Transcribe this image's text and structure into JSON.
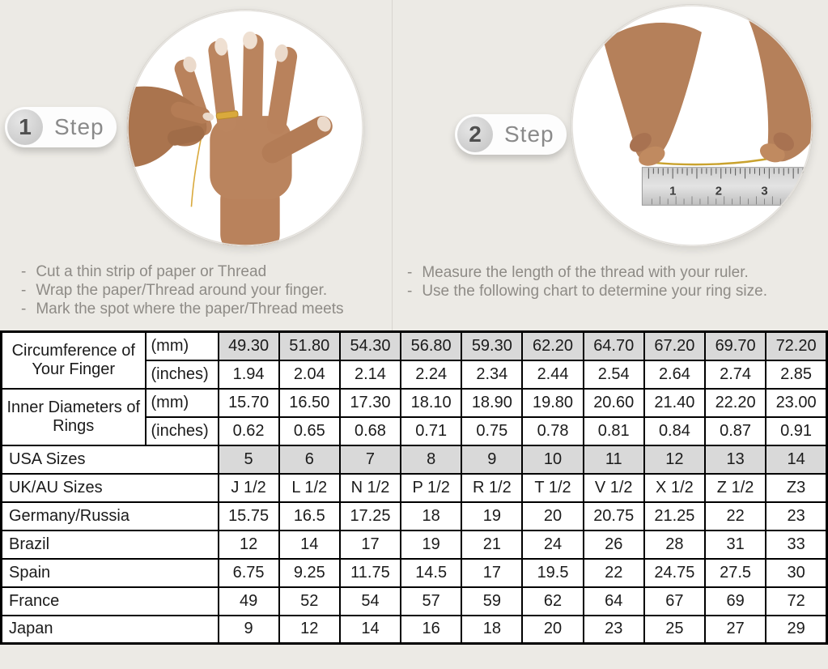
{
  "colors": {
    "background": "#ECEAE5",
    "divider": "#D8D5CF",
    "badge_background": "#FDFDFD",
    "badge_number_text": "#4F4F4F",
    "step_word_text": "#8A8A8A",
    "instruction_text": "#8E8B86",
    "table_border": "#000000",
    "table_shaded_cell": "#D9D9D9",
    "thread_gold": "#C9A22E"
  },
  "steps": [
    {
      "number": "1",
      "label": "Step",
      "photo": "hand-with-thread-around-finger",
      "instructions": [
        "Cut a thin strip of paper or Thread",
        "Wrap the paper/Thread around your finger.",
        "Mark the spot where the paper/Thread meets"
      ]
    },
    {
      "number": "2",
      "label": "Step",
      "photo": "hands-measuring-thread-with-ruler",
      "instructions": [
        "Measure the length of the thread with your ruler.",
        "Use the following chart to determine your ring size."
      ]
    }
  ],
  "ruler_numbers": [
    "1",
    "2",
    "3"
  ],
  "size_chart": {
    "grouped_rows": [
      {
        "label": "Circumference of Your Finger",
        "subrows": [
          {
            "unit": "(mm)",
            "shaded": true,
            "values": [
              "49.30",
              "51.80",
              "54.30",
              "56.80",
              "59.30",
              "62.20",
              "64.70",
              "67.20",
              "69.70",
              "72.20"
            ]
          },
          {
            "unit": "(inches)",
            "shaded": false,
            "values": [
              "1.94",
              "2.04",
              "2.14",
              "2.24",
              "2.34",
              "2.44",
              "2.54",
              "2.64",
              "2.74",
              "2.85"
            ]
          }
        ]
      },
      {
        "label": "Inner Diameters of Rings",
        "subrows": [
          {
            "unit": "(mm)",
            "shaded": false,
            "values": [
              "15.70",
              "16.50",
              "17.30",
              "18.10",
              "18.90",
              "19.80",
              "20.60",
              "21.40",
              "22.20",
              "23.00"
            ]
          },
          {
            "unit": "(inches)",
            "shaded": false,
            "values": [
              "0.62",
              "0.65",
              "0.68",
              "0.71",
              "0.75",
              "0.78",
              "0.81",
              "0.84",
              "0.87",
              "0.91"
            ]
          }
        ]
      }
    ],
    "rows": [
      {
        "label": "USA Sizes",
        "shaded": true,
        "values": [
          "5",
          "6",
          "7",
          "8",
          "9",
          "10",
          "11",
          "12",
          "13",
          "14"
        ]
      },
      {
        "label": "UK/AU Sizes",
        "shaded": false,
        "values": [
          "J 1/2",
          "L 1/2",
          "N 1/2",
          "P 1/2",
          "R 1/2",
          "T 1/2",
          "V 1/2",
          "X 1/2",
          "Z 1/2",
          "Z3"
        ]
      },
      {
        "label": "Germany/Russia",
        "shaded": false,
        "values": [
          "15.75",
          "16.5",
          "17.25",
          "18",
          "19",
          "20",
          "20.75",
          "21.25",
          "22",
          "23"
        ]
      },
      {
        "label": "Brazil",
        "shaded": false,
        "values": [
          "12",
          "14",
          "17",
          "19",
          "21",
          "24",
          "26",
          "28",
          "31",
          "33"
        ]
      },
      {
        "label": "Spain",
        "shaded": false,
        "values": [
          "6.75",
          "9.25",
          "11.75",
          "14.5",
          "17",
          "19.5",
          "22",
          "24.75",
          "27.5",
          "30"
        ]
      },
      {
        "label": "France",
        "shaded": false,
        "values": [
          "49",
          "52",
          "54",
          "57",
          "59",
          "62",
          "64",
          "67",
          "69",
          "72"
        ]
      },
      {
        "label": "Japan",
        "shaded": false,
        "values": [
          "9",
          "12",
          "14",
          "16",
          "18",
          "20",
          "23",
          "25",
          "27",
          "29"
        ]
      }
    ]
  }
}
